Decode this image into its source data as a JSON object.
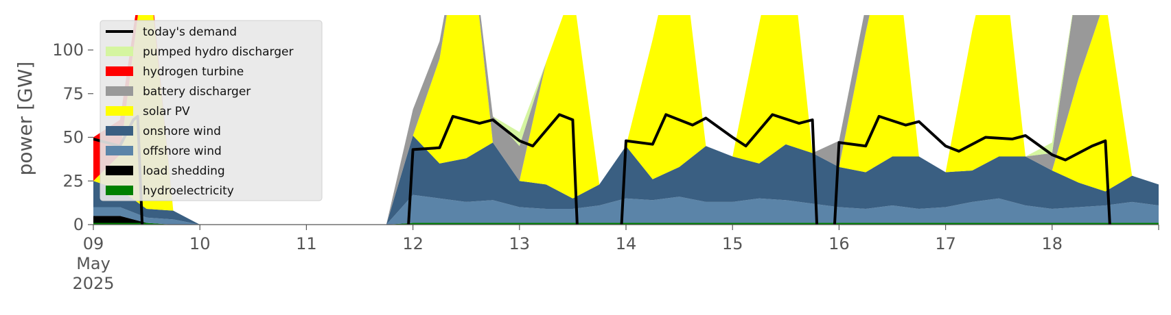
{
  "chart_data": {
    "type": "area",
    "ylabel": "power [GW]",
    "xlabel": "",
    "ylim": [
      0,
      120
    ],
    "xlim": [
      "2025-05-09 00:00",
      "2025-05-18 24:00"
    ],
    "y_ticks": [
      0,
      25,
      50,
      75,
      100
    ],
    "x_ticks": [
      {
        "date": "2025-05-09",
        "lines": [
          "09",
          "May",
          "2025"
        ]
      },
      {
        "date": "2025-05-10",
        "lines": [
          "10"
        ]
      },
      {
        "date": "2025-05-11",
        "lines": [
          "11"
        ]
      },
      {
        "date": "2025-05-12",
        "lines": [
          "12"
        ]
      },
      {
        "date": "2025-05-13",
        "lines": [
          "13"
        ]
      },
      {
        "date": "2025-05-14",
        "lines": [
          "14"
        ]
      },
      {
        "date": "2025-05-15",
        "lines": [
          "15"
        ]
      },
      {
        "date": "2025-05-16",
        "lines": [
          "16"
        ]
      },
      {
        "date": "2025-05-17",
        "lines": [
          "17"
        ]
      },
      {
        "date": "2025-05-18",
        "lines": [
          "18"
        ]
      }
    ],
    "grid": false,
    "legend_position": "top-left",
    "x": [
      "2025-05-09 00:00",
      "2025-05-09 06:00",
      "2025-05-09 12:00",
      "2025-05-09 18:00",
      "2025-05-10 00:00",
      "2025-05-10 06:00",
      "2025-05-10 12:00",
      "2025-05-10 18:00",
      "2025-05-11 00:00",
      "2025-05-11 06:00",
      "2025-05-11 12:00",
      "2025-05-11 18:00",
      "2025-05-12 00:00",
      "2025-05-12 06:00",
      "2025-05-12 12:00",
      "2025-05-12 18:00",
      "2025-05-13 00:00",
      "2025-05-13 06:00",
      "2025-05-13 12:00",
      "2025-05-13 18:00",
      "2025-05-14 00:00",
      "2025-05-14 06:00",
      "2025-05-14 12:00",
      "2025-05-14 18:00",
      "2025-05-15 00:00",
      "2025-05-15 06:00",
      "2025-05-15 12:00",
      "2025-05-15 18:00",
      "2025-05-16 00:00",
      "2025-05-16 06:00",
      "2025-05-16 12:00",
      "2025-05-16 18:00",
      "2025-05-17 00:00",
      "2025-05-17 06:00",
      "2025-05-17 12:00",
      "2025-05-17 18:00",
      "2025-05-18 00:00",
      "2025-05-18 06:00",
      "2025-05-18 12:00",
      "2025-05-18 18:00",
      "2025-05-19 00:00"
    ],
    "stack_order": [
      "hydroelectricity",
      "load shedding",
      "offshore wind",
      "onshore wind",
      "solar PV",
      "battery discharger",
      "hydrogen turbine",
      "pumped hydro discharger"
    ],
    "series": [
      {
        "name": "hydroelectricity",
        "color": "#008000",
        "values": [
          1,
          1,
          1,
          0,
          0,
          0,
          0,
          0,
          0,
          0,
          0,
          0,
          1,
          1,
          1,
          1,
          1,
          1,
          1,
          1,
          1,
          1,
          1,
          1,
          1,
          1,
          1,
          1,
          1,
          1,
          1,
          1,
          1,
          1,
          1,
          1,
          1,
          1,
          1,
          1,
          1
        ]
      },
      {
        "name": "load shedding",
        "color": "#000000",
        "values": [
          4,
          4,
          0,
          0,
          0,
          0,
          0,
          0,
          0,
          0,
          0,
          0,
          0,
          0,
          0,
          0,
          0,
          0,
          0,
          0,
          0,
          0,
          0,
          0,
          0,
          0,
          0,
          0,
          0,
          0,
          0,
          0,
          0,
          0,
          0,
          0,
          0,
          0,
          0,
          0,
          0
        ]
      },
      {
        "name": "offshore wind",
        "color": "#5b84a8",
        "values": [
          5,
          5,
          3,
          3,
          0,
          0,
          0,
          0,
          0,
          0,
          0,
          0,
          16,
          14,
          12,
          13,
          9,
          8,
          8,
          10,
          14,
          13,
          15,
          12,
          12,
          14,
          13,
          11,
          9,
          8,
          10,
          8,
          9,
          12,
          14,
          10,
          8,
          9,
          10,
          12,
          10
        ]
      },
      {
        "name": "onshore wind",
        "color": "#3a5f82",
        "values": [
          15,
          10,
          5,
          5,
          0,
          0,
          0,
          0,
          0,
          0,
          0,
          0,
          34,
          20,
          25,
          33,
          15,
          14,
          6,
          12,
          30,
          12,
          17,
          32,
          26,
          20,
          32,
          29,
          23,
          21,
          28,
          30,
          20,
          18,
          24,
          28,
          22,
          14,
          8,
          15,
          12
        ]
      },
      {
        "name": "solar PV",
        "color": "#ffff00",
        "values": [
          0,
          20,
          150,
          0,
          0,
          0,
          0,
          0,
          0,
          0,
          0,
          0,
          0,
          60,
          150,
          0,
          0,
          70,
          120,
          0,
          0,
          80,
          140,
          0,
          0,
          80,
          140,
          0,
          0,
          80,
          140,
          0,
          0,
          80,
          140,
          0,
          0,
          60,
          110,
          0,
          0
        ]
      },
      {
        "name": "battery discharger",
        "color": "#999999",
        "values": [
          0,
          0,
          0,
          0,
          0,
          0,
          0,
          0,
          0,
          0,
          0,
          0,
          15,
          10,
          0,
          15,
          20,
          0,
          0,
          0,
          0,
          0,
          0,
          0,
          0,
          0,
          0,
          0,
          15,
          15,
          0,
          0,
          0,
          0,
          0,
          0,
          10,
          60,
          0,
          0,
          0
        ]
      },
      {
        "name": "hydrogen turbine",
        "color": "#ff0000",
        "values": [
          25,
          20,
          5,
          0,
          0,
          0,
          0,
          0,
          0,
          0,
          0,
          0,
          0,
          0,
          0,
          0,
          0,
          0,
          0,
          0,
          0,
          0,
          0,
          0,
          0,
          0,
          0,
          0,
          0,
          0,
          0,
          0,
          0,
          0,
          0,
          0,
          0,
          0,
          0,
          0,
          0
        ]
      },
      {
        "name": "pumped hydro discharger",
        "color": "#d5f5a0",
        "values": [
          0,
          0,
          0,
          0,
          0,
          0,
          0,
          0,
          0,
          0,
          0,
          0,
          0,
          0,
          0,
          0,
          8,
          0,
          0,
          0,
          0,
          0,
          0,
          0,
          0,
          0,
          0,
          0,
          0,
          0,
          0,
          0,
          0,
          0,
          0,
          0,
          6,
          0,
          0,
          0,
          0
        ]
      },
      {
        "name": "today's demand",
        "color": "#000000",
        "kind": "line",
        "segments": [
          {
            "x": [
              "2025-05-09 00:00",
              "2025-05-09 06:00",
              "2025-05-09 09:00",
              "2025-05-09 10:00",
              "2025-05-09 11:00"
            ],
            "values": [
              49,
              45,
              60,
              62,
              0
            ]
          },
          {
            "x": [
              "2025-05-11 23:00",
              "2025-05-12 00:00",
              "2025-05-12 06:00",
              "2025-05-12 09:00",
              "2025-05-12 15:00",
              "2025-05-12 18:00",
              "2025-05-13 00:00",
              "2025-05-13 03:00",
              "2025-05-13 09:00",
              "2025-05-13 12:00",
              "2025-05-13 13:00"
            ],
            "values": [
              0,
              43,
              44,
              62,
              58,
              60,
              48,
              45,
              63,
              60,
              0
            ]
          },
          {
            "x": [
              "2025-05-13 23:00",
              "2025-05-14 00:00",
              "2025-05-14 06:00",
              "2025-05-14 09:00",
              "2025-05-14 15:00",
              "2025-05-14 18:00",
              "2025-05-15 00:00",
              "2025-05-15 03:00",
              "2025-05-15 09:00",
              "2025-05-15 15:00",
              "2025-05-15 18:00",
              "2025-05-15 19:00"
            ],
            "values": [
              0,
              48,
              46,
              63,
              57,
              61,
              50,
              45,
              63,
              58,
              60,
              0
            ]
          },
          {
            "x": [
              "2025-05-15 23:00",
              "2025-05-16 00:00",
              "2025-05-16 06:00",
              "2025-05-16 09:00",
              "2025-05-16 15:00",
              "2025-05-16 18:00",
              "2025-05-17 00:00",
              "2025-05-17 03:00",
              "2025-05-17 09:00",
              "2025-05-17 15:00",
              "2025-05-17 18:00",
              "2025-05-18 00:00",
              "2025-05-18 03:00",
              "2025-05-18 09:00",
              "2025-05-18 12:00",
              "2025-05-18 13:00"
            ],
            "values": [
              0,
              47,
              45,
              62,
              57,
              59,
              45,
              42,
              50,
              49,
              51,
              40,
              37,
              45,
              48,
              0
            ]
          }
        ]
      }
    ],
    "legend": [
      "today's demand",
      "pumped hydro discharger",
      "hydrogen turbine",
      "battery discharger",
      "solar PV",
      "onshore wind",
      "offshore wind",
      "load shedding",
      "hydroelectricity"
    ]
  }
}
